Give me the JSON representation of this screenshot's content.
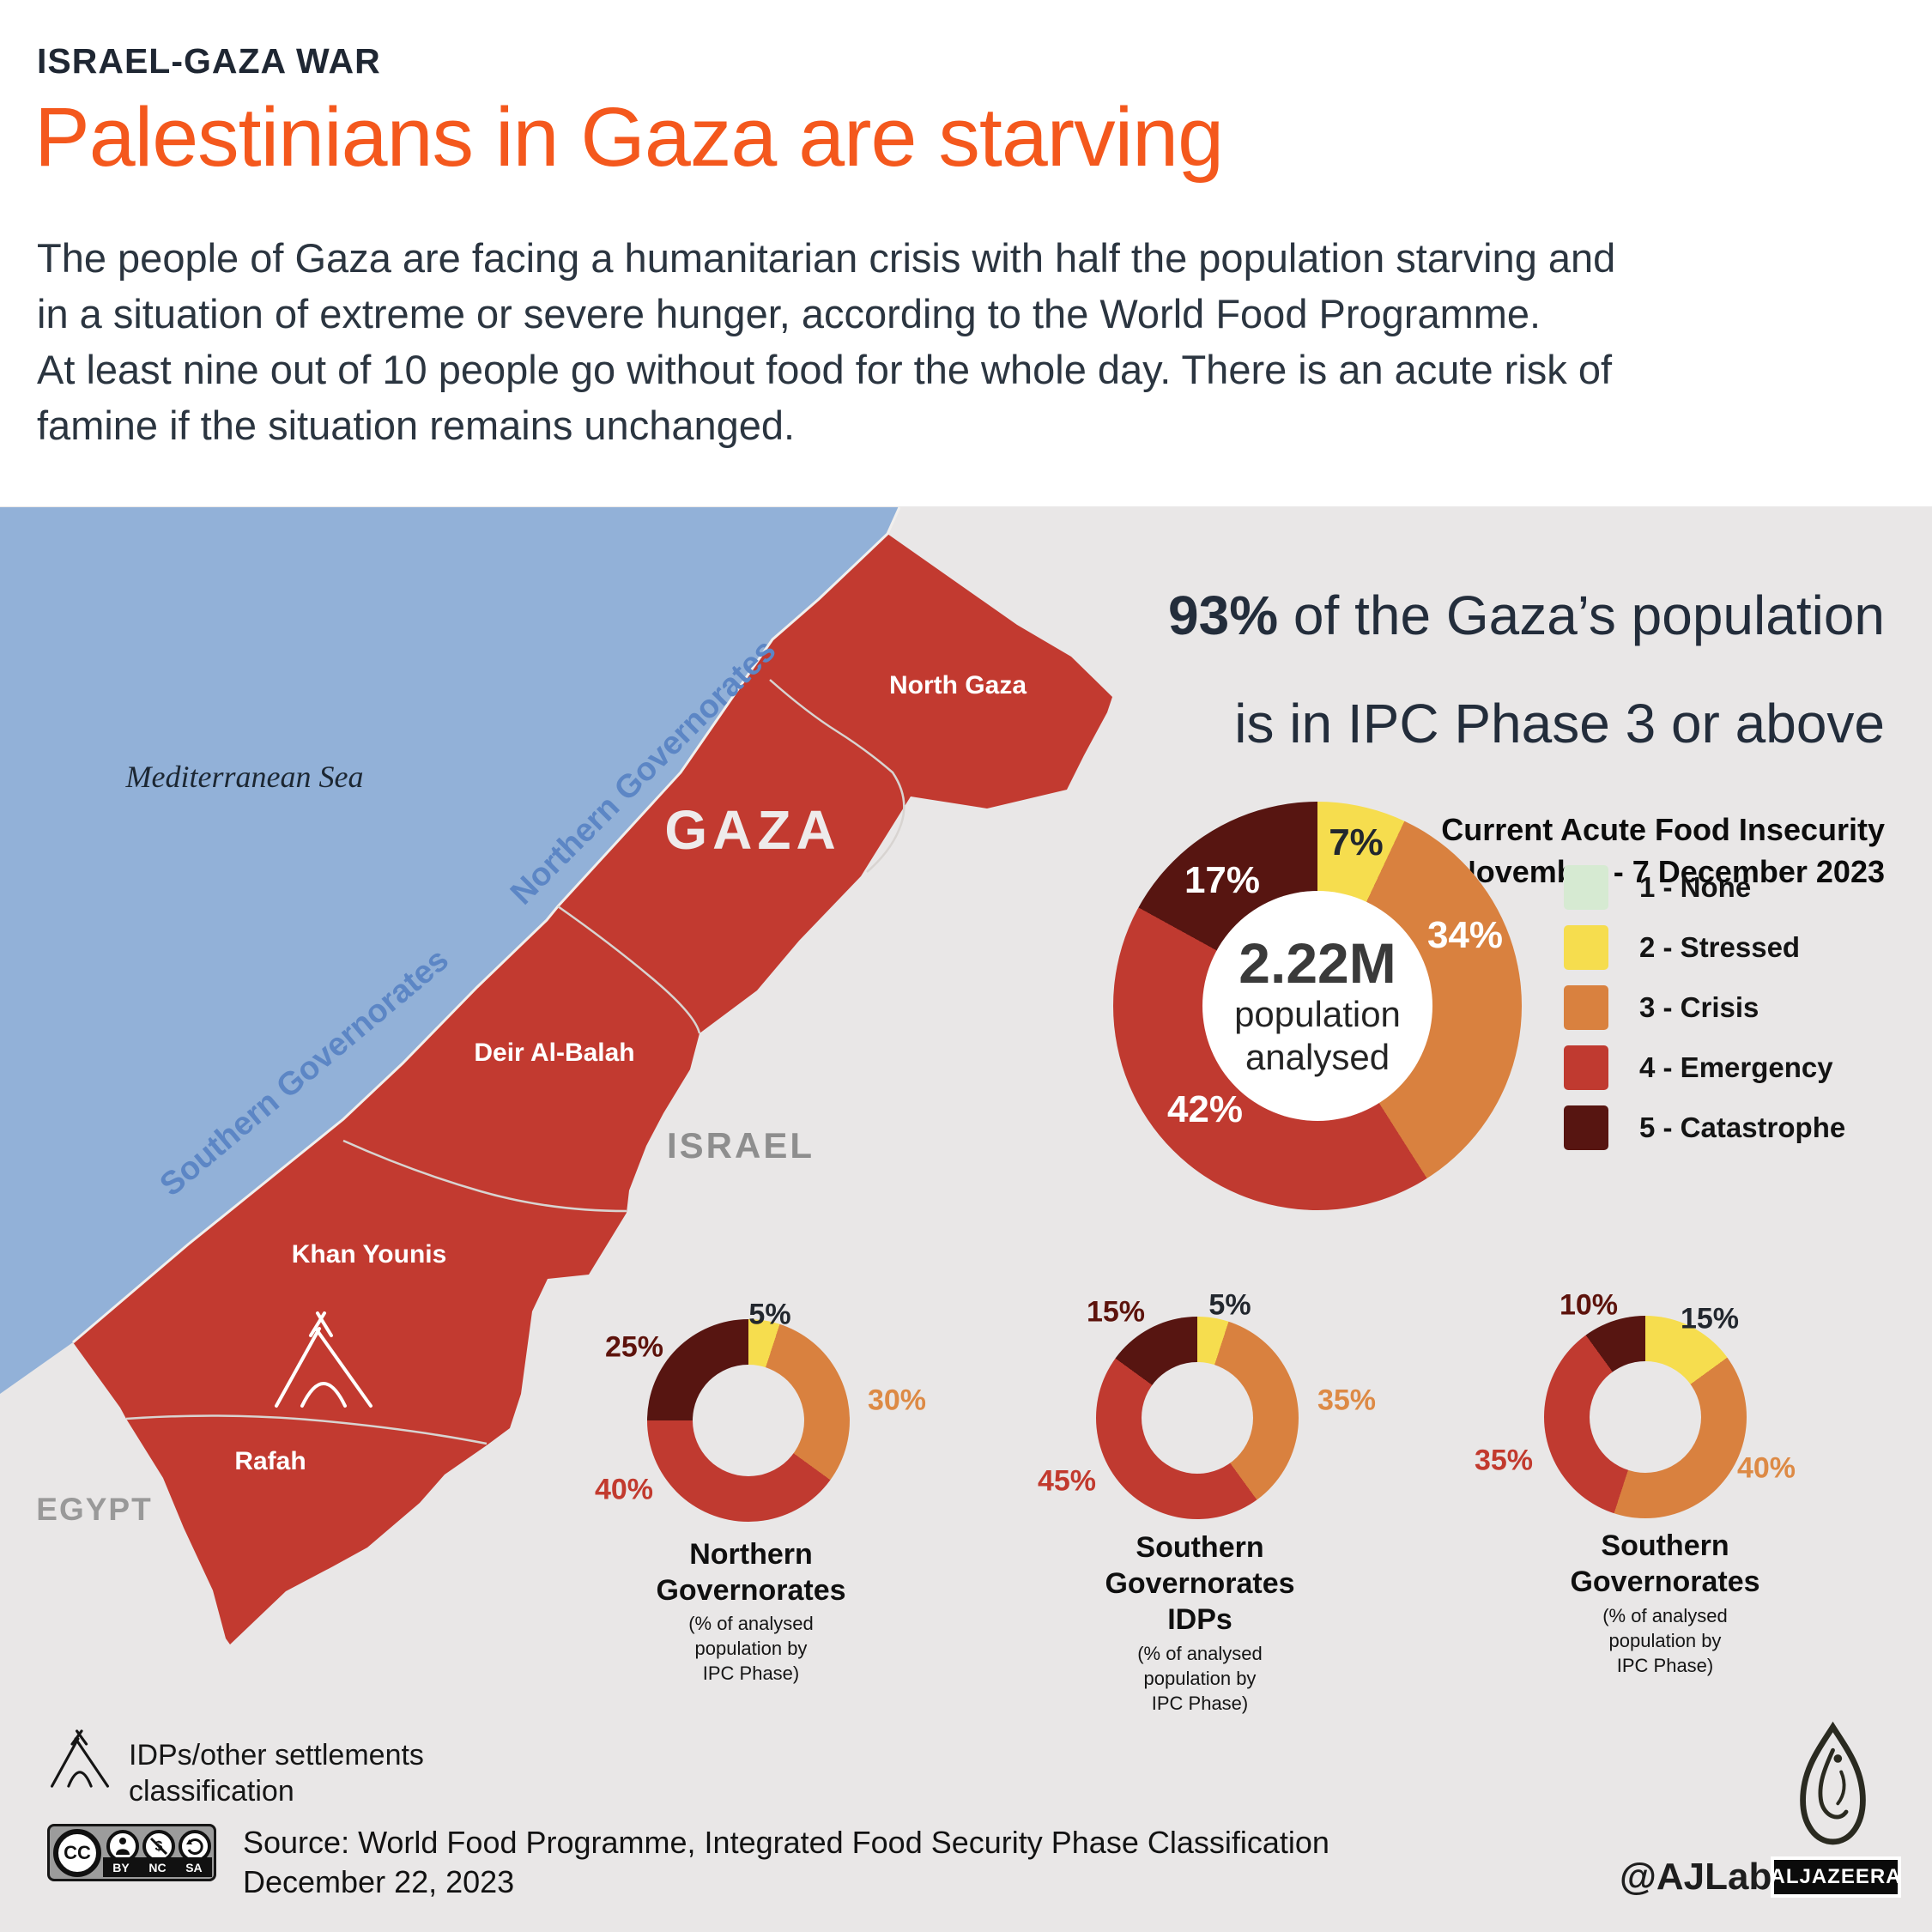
{
  "header": {
    "kicker": "ISRAEL-GAZA WAR",
    "title": "Palestinians in Gaza are starving",
    "lines": [
      "The people of Gaza are facing a humanitarian crisis with half the population starving and",
      "in a situation of extreme or severe hunger, according to the World Food Programme.",
      "At least nine out of 10 people go without food for the whole day. There is an acute risk of",
      "famine if the situation remains unchanged."
    ]
  },
  "colors": {
    "accent_orange": "#f4581d",
    "navy_text": "#232d3b",
    "panel_bg": "#e9e7e7",
    "sea": "#92b1d8",
    "strip_red": "#c23a30",
    "gov_label_blue": "#5c86c5",
    "phase_colors": {
      "none": "#d6ead2",
      "stressed": "#f6dd4e",
      "crisis": "#d9813f",
      "emergency": "#c03a30",
      "catastrophe": "#571511"
    }
  },
  "map": {
    "sea_label": "Mediterranean Sea",
    "northern_gov": "Northern Governorates",
    "southern_gov": "Southern Governorates",
    "gaza": "GAZA",
    "israel": "ISRAEL",
    "egypt": "EGYPT",
    "regions": {
      "north_gaza": "North Gaza",
      "deir_al_balah": "Deir Al-Balah",
      "khan_younis": "Khan Younis",
      "rafah": "Rafah"
    }
  },
  "stat": {
    "value": "93%",
    "line1_rest": " of the Gaza’s population",
    "line2": "is in IPC Phase 3 or above"
  },
  "period": {
    "line1": "Current Acute Food Insecurity",
    "line2": "24 November - 7 December 2023"
  },
  "legend": {
    "items": [
      {
        "label": "1 - None",
        "phase": "none"
      },
      {
        "label": "2 - Stressed",
        "phase": "stressed"
      },
      {
        "label": "3 - Crisis",
        "phase": "crisis"
      },
      {
        "label": "4 - Emergency",
        "phase": "emergency"
      },
      {
        "label": "5 - Catastrophe",
        "phase": "catastrophe"
      }
    ]
  },
  "chart_data": [
    {
      "id": "main",
      "type": "pie",
      "title": "Current Acute Food Insecurity",
      "subtitle": "24 November - 7 December 2023",
      "annotation": "93% of the Gaza’s population is in IPC Phase 3 or above",
      "categories": [
        "1 - None",
        "2 - Stressed",
        "3 - Crisis",
        "4 - Emergency",
        "5 - Catastrophe"
      ],
      "values": [
        0,
        7,
        34,
        42,
        17
      ],
      "center_value": "2.22M",
      "center_lines": [
        "population",
        "analysed"
      ],
      "slice_labels": [
        {
          "text": "7%",
          "phase": "stressed",
          "ink": "dark"
        },
        {
          "text": "34%",
          "phase": "crisis",
          "ink": "white"
        },
        {
          "text": "42%",
          "phase": "emergency",
          "ink": "white"
        },
        {
          "text": "17%",
          "phase": "catastrophe",
          "ink": "white"
        }
      ]
    },
    {
      "id": "north",
      "type": "pie",
      "title_lines": [
        "Northern",
        "Governorates"
      ],
      "note_lines": [
        "(% of analysed",
        "population by",
        "IPC Phase)"
      ],
      "categories": [
        "1 - None",
        "2 - Stressed",
        "3 - Crisis",
        "4 - Emergency",
        "5 - Catastrophe"
      ],
      "values": [
        0,
        5,
        30,
        40,
        25
      ],
      "slice_labels": [
        {
          "text": "5%",
          "phase": "stressed",
          "ink": "dark"
        },
        {
          "text": "30%",
          "phase": "crisis",
          "ink": "orange"
        },
        {
          "text": "40%",
          "phase": "emergency",
          "ink": "red"
        },
        {
          "text": "25%",
          "phase": "catastrophe",
          "ink": "maroon"
        }
      ]
    },
    {
      "id": "south_idps",
      "type": "pie",
      "title_lines": [
        "Southern",
        "Governorates",
        "IDPs"
      ],
      "note_lines": [
        "(% of analysed",
        "population by",
        "IPC Phase)"
      ],
      "categories": [
        "1 - None",
        "2 - Stressed",
        "3 - Crisis",
        "4 - Emergency",
        "5 - Catastrophe"
      ],
      "values": [
        0,
        5,
        35,
        45,
        15
      ],
      "slice_labels": [
        {
          "text": "5%",
          "phase": "stressed",
          "ink": "dark"
        },
        {
          "text": "35%",
          "phase": "crisis",
          "ink": "orange"
        },
        {
          "text": "45%",
          "phase": "emergency",
          "ink": "red"
        },
        {
          "text": "15%",
          "phase": "catastrophe",
          "ink": "maroon"
        }
      ]
    },
    {
      "id": "south",
      "type": "pie",
      "title_lines": [
        "Southern",
        "Governorates"
      ],
      "note_lines": [
        "(% of analysed",
        "population by",
        "IPC Phase)"
      ],
      "categories": [
        "1 - None",
        "2 - Stressed",
        "3 - Crisis",
        "4 - Emergency",
        "5 - Catastrophe"
      ],
      "values": [
        0,
        15,
        40,
        35,
        10
      ],
      "slice_labels": [
        {
          "text": "15%",
          "phase": "stressed",
          "ink": "dark"
        },
        {
          "text": "40%",
          "phase": "crisis",
          "ink": "orange"
        },
        {
          "text": "35%",
          "phase": "emergency",
          "ink": "red"
        },
        {
          "text": "10%",
          "phase": "catastrophe",
          "ink": "maroon"
        }
      ]
    }
  ],
  "footer": {
    "idp_line1": "IDPs/other settlements",
    "idp_line2": "classification",
    "cc_letters": [
      "BY",
      "NC",
      "SA"
    ],
    "source_line1": "Source:  World Food Programme,  Integrated Food Security Phase Classification",
    "source_line2": "December 22, 2023",
    "handle": "@AJLabs",
    "brand": "ALJAZEERA"
  }
}
